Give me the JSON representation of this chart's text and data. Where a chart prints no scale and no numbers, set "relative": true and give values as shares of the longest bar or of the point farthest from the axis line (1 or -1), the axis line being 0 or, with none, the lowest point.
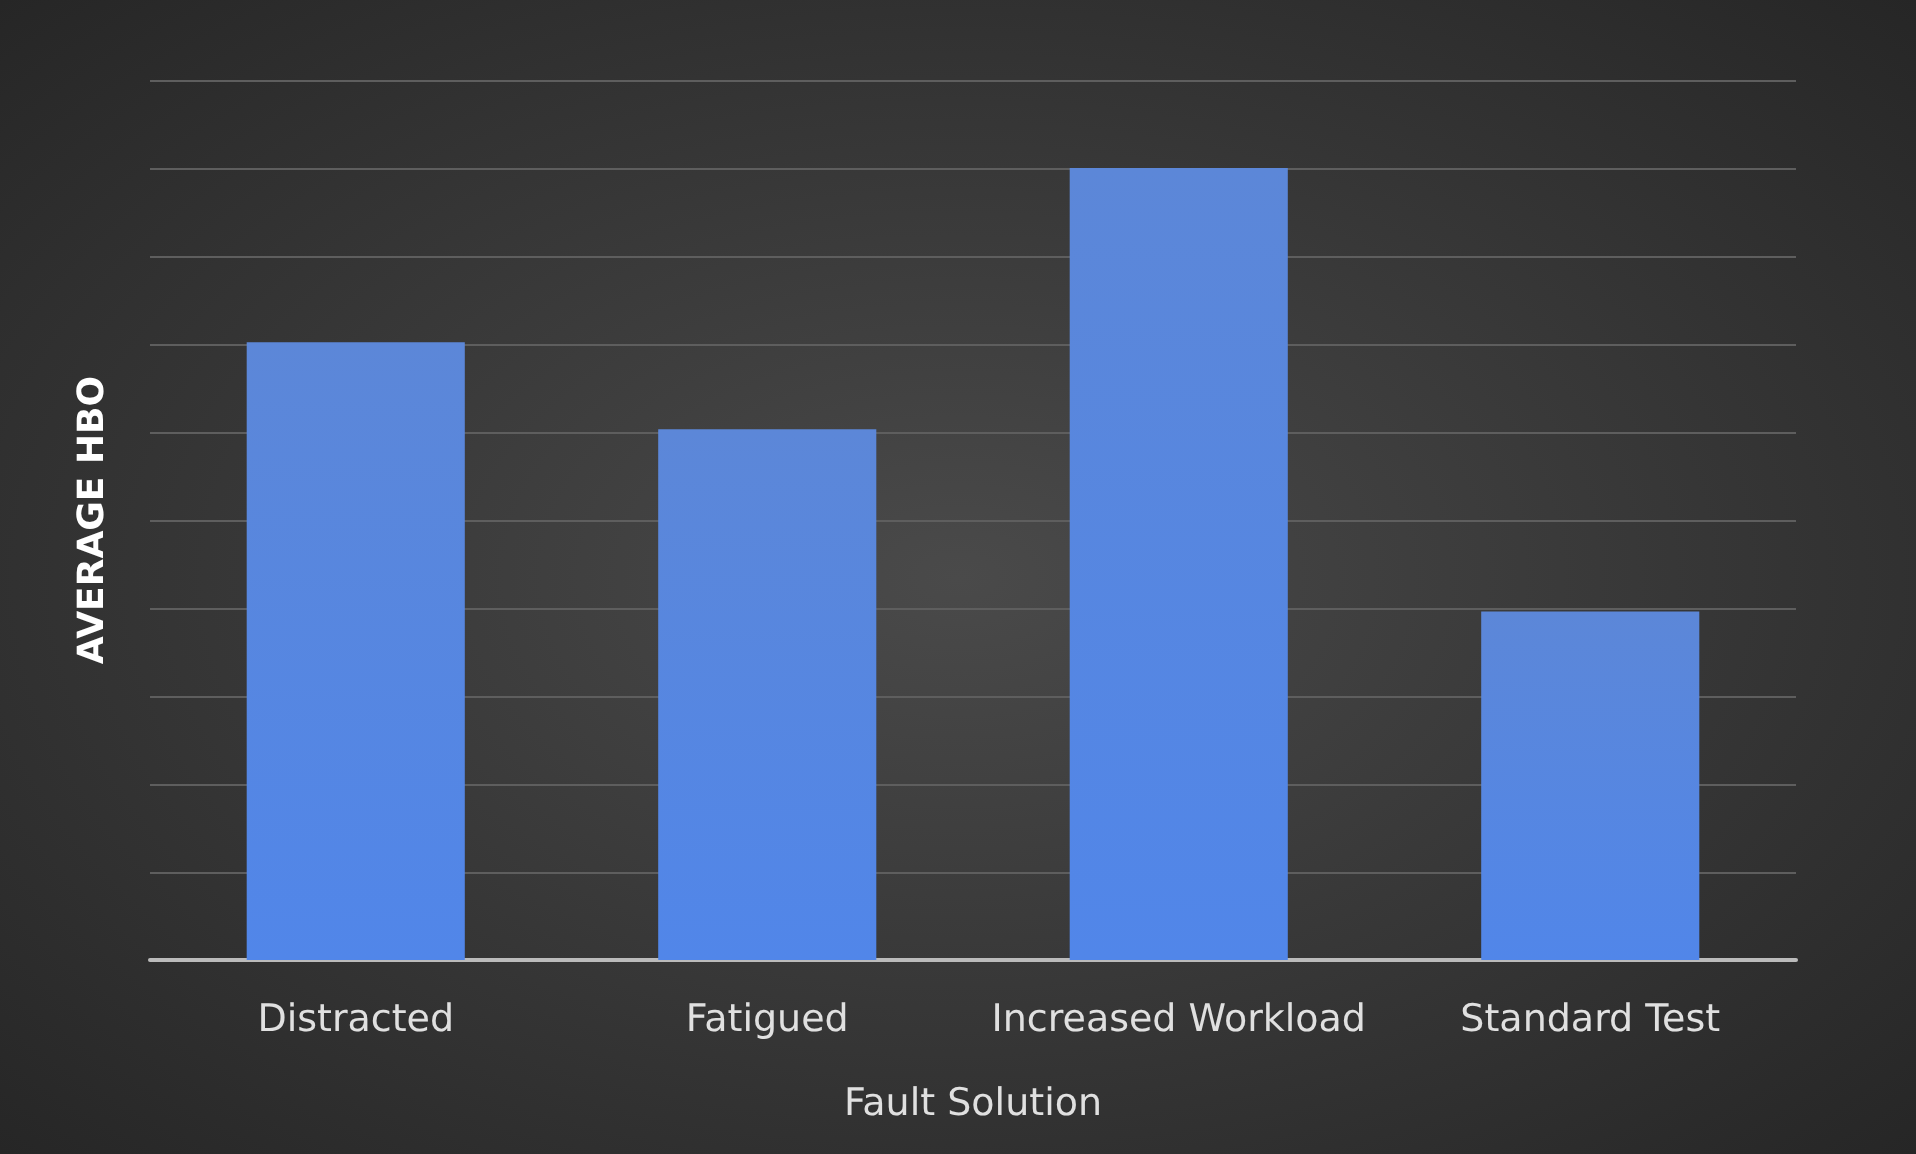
{
  "chart_data": {
    "type": "bar",
    "relative": true,
    "xlabel": "Fault Solution",
    "ylabel": "AVERAGE HBO",
    "categories": [
      "Distracted",
      "Fatigued",
      "Increased Workload",
      "Standard Test"
    ],
    "values": [
      0.78,
      0.67,
      1,
      0.44
    ],
    "color": "#4a7ad4",
    "grid": "y"
  }
}
